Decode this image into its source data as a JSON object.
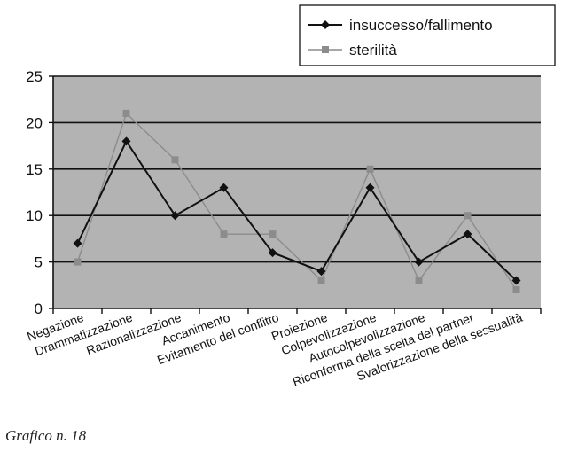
{
  "caption": "Grafico n. 18",
  "colors": {
    "plot_bg": "#b3b3b3",
    "grid": "#111111",
    "series_1": "#111111",
    "series_2": "#8c8c8c"
  },
  "chart_data": {
    "type": "line",
    "categories": [
      "Negazione",
      "Drammatizzazione",
      "Razionalizzazione",
      "Accanimento",
      "Evitamento del conflitto",
      "Proiezione",
      "Colpevolizzazione",
      "Autocolpevolizzazione",
      "Riconferma della scelta del partner",
      "Svalorizzazione della sessualità"
    ],
    "series": [
      {
        "name": "insuccesso/fallimento",
        "values": [
          7,
          18,
          10,
          13,
          6,
          4,
          13,
          5,
          8,
          3
        ],
        "marker": "diamond",
        "color": "#111111"
      },
      {
        "name": "sterilità",
        "values": [
          5,
          21,
          16,
          8,
          8,
          3,
          15,
          3,
          10,
          2
        ],
        "marker": "square",
        "color": "#8c8c8c"
      }
    ],
    "ylim": [
      0,
      25
    ],
    "yticks": [
      "0",
      "5",
      "10",
      "15",
      "20",
      "25"
    ],
    "grid": true,
    "legend_position": "top-right"
  }
}
